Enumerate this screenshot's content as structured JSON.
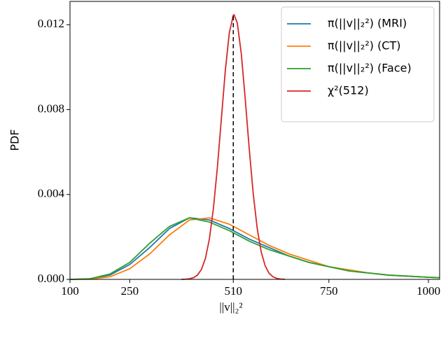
{
  "chart_data": {
    "type": "line",
    "xlabel": "||v||₂²",
    "ylabel": "PDF",
    "xlim": [
      100,
      1028
    ],
    "ylim": [
      0,
      0.0131
    ],
    "xticks": [
      100,
      250,
      510,
      750,
      1000
    ],
    "yticks": [
      {
        "value": 0,
        "label": "0.000"
      },
      0.004,
      0.008,
      0.012
    ],
    "reference_line": {
      "x": 510,
      "style": "dashed",
      "color": "#000000"
    },
    "legend": "upper right",
    "series": [
      {
        "name": "π(||v||₂²) (MRI)",
        "color": "#1f77b4",
        "x": [
          100,
          150,
          200,
          250,
          300,
          350,
          400,
          450,
          500,
          550,
          600,
          650,
          700,
          750,
          800,
          850,
          900,
          950,
          1000,
          1028
        ],
        "values": [
          0,
          2e-05,
          0.0002,
          0.0007,
          0.0015,
          0.0024,
          0.0029,
          0.0028,
          0.0024,
          0.0019,
          0.0015,
          0.0011,
          0.0008,
          0.0006,
          0.0004,
          0.0003,
          0.0002,
          0.00015,
          0.0001,
          8e-05
        ]
      },
      {
        "name": "π(||v||₂²) (CT)",
        "color": "#ff7f0e",
        "x": [
          100,
          150,
          200,
          250,
          300,
          350,
          400,
          450,
          500,
          550,
          600,
          650,
          700,
          750,
          800,
          850,
          900,
          950,
          1000,
          1028
        ],
        "values": [
          0,
          1e-05,
          0.00012,
          0.0005,
          0.0012,
          0.0021,
          0.0028,
          0.0029,
          0.0026,
          0.0021,
          0.0016,
          0.0012,
          0.0009,
          0.0006,
          0.00045,
          0.0003,
          0.0002,
          0.00015,
          0.0001,
          8e-05
        ]
      },
      {
        "name": "π(||v||₂²) (Face)",
        "color": "#2ca02c",
        "x": [
          100,
          150,
          200,
          250,
          300,
          350,
          400,
          450,
          500,
          550,
          600,
          650,
          700,
          750,
          800,
          850,
          900,
          950,
          1000,
          1028
        ],
        "values": [
          0,
          3e-05,
          0.00025,
          0.0008,
          0.0017,
          0.0025,
          0.0029,
          0.0027,
          0.0023,
          0.0018,
          0.0014,
          0.0011,
          0.0008,
          0.0006,
          0.0004,
          0.0003,
          0.0002,
          0.00015,
          0.0001,
          8e-05
        ]
      },
      {
        "name": "χ²(512)",
        "color": "#d62728",
        "x": [
          380,
          390,
          400,
          410,
          420,
          430,
          440,
          450,
          460,
          470,
          480,
          490,
          500,
          510,
          512,
          520,
          530,
          540,
          550,
          560,
          570,
          580,
          590,
          600,
          610,
          620,
          630,
          640
        ],
        "values": [
          2.5e-06,
          8.7e-06,
          2.73e-05,
          7.76e-05,
          0.0002,
          0.00047,
          0.00099,
          0.00191,
          0.00333,
          0.00527,
          0.00756,
          0.00985,
          0.01162,
          0.01245,
          0.01247,
          0.01209,
          0.01065,
          0.0085,
          0.00616,
          0.00405,
          0.00241,
          0.0013,
          0.00064,
          0.000284,
          0.000115,
          4.2e-05,
          1.4e-05,
          4.2e-06
        ]
      }
    ]
  }
}
